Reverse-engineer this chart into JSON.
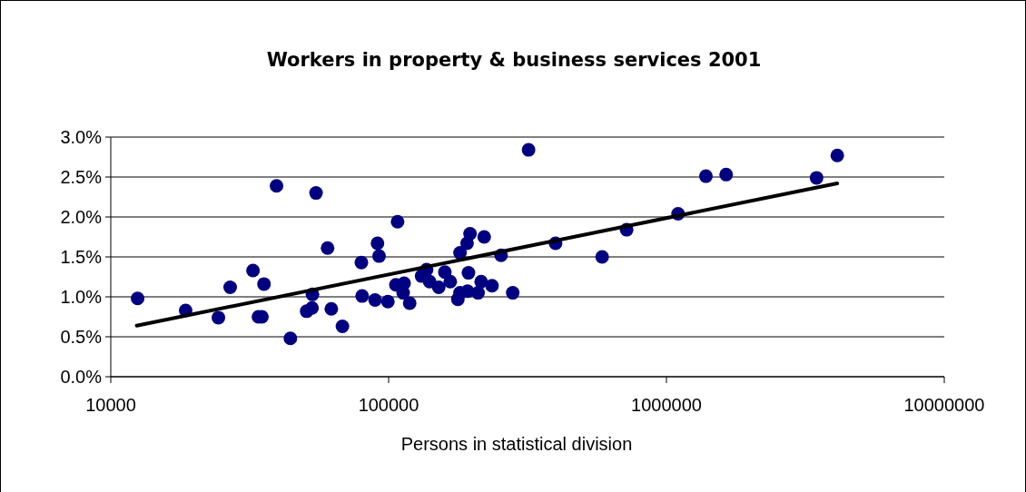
{
  "chart_data": {
    "type": "scatter",
    "title": "Workers in property & business services 2001",
    "xlabel": "Persons in statistical division",
    "log": "x",
    "grid": "y",
    "marker": "circle",
    "xlim": [
      10000,
      10000000
    ],
    "xticks": [
      10000,
      100000,
      1000000,
      10000000
    ],
    "ylim": [
      0,
      3
    ],
    "yticks": [
      {
        "value": 0,
        "label": "0.0%"
      },
      {
        "value": 0.5,
        "label": "0.5%"
      },
      {
        "value": 1,
        "label": "1.0%"
      },
      {
        "value": 1.5,
        "label": "1.5%"
      },
      {
        "value": 2,
        "label": "2.0%"
      },
      {
        "value": 2.5,
        "label": "2.5%"
      },
      {
        "value": 3,
        "label": "3.0%"
      }
    ],
    "series": [
      {
        "color": "#000080",
        "x": [
          12490,
          18600,
          24400,
          26900,
          32500,
          34000,
          35000,
          35600,
          39500,
          44300,
          50700,
          53000,
          53200,
          54800,
          60300,
          62200,
          68200,
          79800,
          80300,
          89400,
          91200,
          92400,
          99400,
          107700,
          106200,
          113700,
          112800,
          119100,
          131400,
          137000,
          140500,
          151500,
          159400,
          166700,
          177500,
          180700,
          180700,
          191600,
          196400,
          193800,
          192300,
          209900,
          215300,
          220800,
          235600,
          254000,
          279700,
          319000,
          399000,
          587000,
          719000,
          1101000,
          1387000,
          1640000,
          3470000,
          4120000
        ],
        "values": [
          0.98,
          0.83,
          0.74,
          1.12,
          1.33,
          0.75,
          0.75,
          1.16,
          2.39,
          0.48,
          0.82,
          0.86,
          1.03,
          2.3,
          1.61,
          0.85,
          0.63,
          1.43,
          1.01,
          0.96,
          1.67,
          1.51,
          0.94,
          1.94,
          1.15,
          1.17,
          1.05,
          0.92,
          1.26,
          1.34,
          1.19,
          1.12,
          1.31,
          1.19,
          0.97,
          1.05,
          1.55,
          1.67,
          1.79,
          1.3,
          1.07,
          1.05,
          1.19,
          1.75,
          1.14,
          1.52,
          1.05,
          2.84,
          1.67,
          1.5,
          1.84,
          2.04,
          2.51,
          2.53,
          2.49,
          2.77
        ]
      },
      {
        "type": "line",
        "color": "#000000",
        "marker": "none",
        "x": [
          12400,
          4120000
        ],
        "values": [
          0.64,
          2.42
        ]
      }
    ]
  }
}
